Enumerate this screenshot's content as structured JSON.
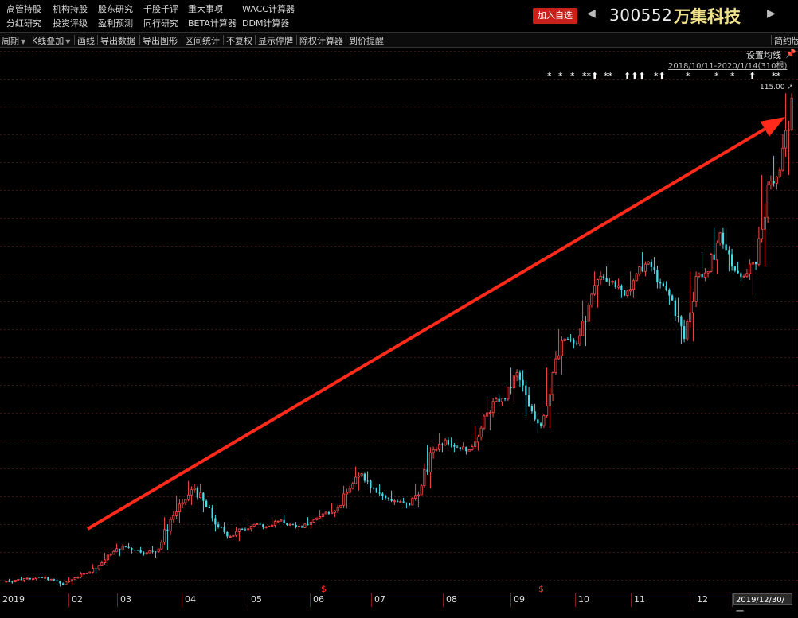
{
  "menu": {
    "row1": [
      "高管持股",
      "机构持股",
      "股东研究",
      "千股千评",
      "重大事项",
      "WACC计算器"
    ],
    "row2": [
      "分红研究",
      "投资评级",
      "盈利预测",
      "同行研究",
      "BETA计算器",
      "DDM计算器"
    ]
  },
  "header": {
    "add_watch": "加入自选",
    "code": "300552",
    "name": "万集科技",
    "prev_icon": "triangle-left-icon",
    "next_icon": "triangle-right-icon"
  },
  "toolbar": {
    "items": [
      "周期",
      "K线叠加",
      "画线",
      "导出数据",
      "导出图形",
      "区间统计",
      "不复权",
      "显示停牌",
      "除权计算器",
      "到价提醒"
    ],
    "right": "简约版"
  },
  "chart_panel": {
    "set_ma": "设置均线",
    "date_range": "2018/10/11-2020/1/14(310根)",
    "max_label": "115.00",
    "max_arrow": "↗",
    "cursor_date": "2019/12/30/一",
    "marker_glyphs": [
      "*",
      "*",
      "*",
      "**⬆",
      "**",
      "⬆⬆⬆",
      "*⬆",
      "*",
      "*",
      "*",
      "⬆",
      "**"
    ],
    "div_markers": [
      "$",
      "$"
    ],
    "year_label": "2019"
  },
  "chart_data": {
    "type": "candlestick",
    "title": "",
    "xlabel": "",
    "ylabel": "",
    "period": "2019-01 to 2019-12",
    "x_tick_labels": [
      "2019",
      "02",
      "03",
      "04",
      "05",
      "06",
      "07",
      "08",
      "09",
      "10",
      "11",
      "12"
    ],
    "annotation": {
      "type": "arrow",
      "color": "#ff2a1a",
      "direction": "up-right",
      "from": [
        "02",
        14.5
      ],
      "to": [
        "12",
        85
      ]
    },
    "colors": {
      "up": "#ff4a4a",
      "down": "#44dde8"
    },
    "ohlc_weekly": [
      [
        13.6,
        14.2,
        13.2,
        13.9
      ],
      [
        13.9,
        14.6,
        13.5,
        14.3
      ],
      [
        14.3,
        14.8,
        13.9,
        14.5
      ],
      [
        14.5,
        14.9,
        13.8,
        14.1
      ],
      [
        14.1,
        14.3,
        12.6,
        13.0
      ],
      [
        13.0,
        14.5,
        12.8,
        14.4
      ],
      [
        14.4,
        15.6,
        14.2,
        15.4
      ],
      [
        15.4,
        17.2,
        15.2,
        17.0
      ],
      [
        17.0,
        19.6,
        16.8,
        19.3
      ],
      [
        19.3,
        21.5,
        18.9,
        21.0
      ],
      [
        21.0,
        21.6,
        19.5,
        20.2
      ],
      [
        20.2,
        20.8,
        19.0,
        19.6
      ],
      [
        19.6,
        21.0,
        18.6,
        20.4
      ],
      [
        20.4,
        27.0,
        20.2,
        26.5
      ],
      [
        26.5,
        31.5,
        25.8,
        30.0
      ],
      [
        30.0,
        34.5,
        29.5,
        33.0
      ],
      [
        33.0,
        34.0,
        28.0,
        29.0
      ],
      [
        29.0,
        29.5,
        24.0,
        25.0
      ],
      [
        25.0,
        26.0,
        22.5,
        23.0
      ],
      [
        23.0,
        25.0,
        22.0,
        24.5
      ],
      [
        24.5,
        26.5,
        24.0,
        25.5
      ],
      [
        25.5,
        26.0,
        24.5,
        25.0
      ],
      [
        25.0,
        27.0,
        24.8,
        26.2
      ],
      [
        26.2,
        27.5,
        25.2,
        25.5
      ],
      [
        25.5,
        26.0,
        24.2,
        24.8
      ],
      [
        24.8,
        27.0,
        24.6,
        26.5
      ],
      [
        26.5,
        28.5,
        26.2,
        28.0
      ],
      [
        28.0,
        30.0,
        27.0,
        29.0
      ],
      [
        29.0,
        33.5,
        28.8,
        33.0
      ],
      [
        33.0,
        37.5,
        32.5,
        36.0
      ],
      [
        36.0,
        36.5,
        32.0,
        33.0
      ],
      [
        33.0,
        33.8,
        30.5,
        31.0
      ],
      [
        31.0,
        32.5,
        29.5,
        30.2
      ],
      [
        30.2,
        31.0,
        28.8,
        29.5
      ],
      [
        29.5,
        34.0,
        29.0,
        33.5
      ],
      [
        33.5,
        42.0,
        33.0,
        41.0
      ],
      [
        41.0,
        44.5,
        40.5,
        43.0
      ],
      [
        43.0,
        43.5,
        40.5,
        41.5
      ],
      [
        41.5,
        42.5,
        40.0,
        41.0
      ],
      [
        41.0,
        46.0,
        40.8,
        45.5
      ],
      [
        45.5,
        52.0,
        45.0,
        51.0
      ],
      [
        51.0,
        52.5,
        50.0,
        51.5
      ],
      [
        51.5,
        58.0,
        51.0,
        57.0
      ],
      [
        57.0,
        57.5,
        48.0,
        50.0
      ],
      [
        50.0,
        50.5,
        44.5,
        46.0
      ],
      [
        46.0,
        58.0,
        45.5,
        57.0
      ],
      [
        57.0,
        66.0,
        56.5,
        64.0
      ],
      [
        64.0,
        65.0,
        62.0,
        63.0
      ],
      [
        63.0,
        72.0,
        62.5,
        71.0
      ],
      [
        71.0,
        78.0,
        70.5,
        77.0
      ],
      [
        77.0,
        79.0,
        75.0,
        76.0
      ],
      [
        76.0,
        76.5,
        72.5,
        73.0
      ],
      [
        73.0,
        78.0,
        72.5,
        77.5
      ],
      [
        77.5,
        82.0,
        77.0,
        80.0
      ],
      [
        80.0,
        81.0,
        74.5,
        75.5
      ],
      [
        75.5,
        76.0,
        71.0,
        72.0
      ],
      [
        72.0,
        72.5,
        63.0,
        64.0
      ],
      [
        64.0,
        78.0,
        63.5,
        77.0
      ],
      [
        77.0,
        82.0,
        76.0,
        78.0
      ],
      [
        78.0,
        87.0,
        77.5,
        86.0
      ],
      [
        86.0,
        87.0,
        78.0,
        79.0
      ],
      [
        79.0,
        80.0,
        76.0,
        77.0
      ],
      [
        77.0,
        80.5,
        73.0,
        79.5
      ],
      [
        79.5,
        98.0,
        79.0,
        96.0
      ],
      [
        96.0,
        102.0,
        95.0,
        99.0
      ],
      [
        99.0,
        115.0,
        98.0,
        114.0
      ]
    ]
  }
}
